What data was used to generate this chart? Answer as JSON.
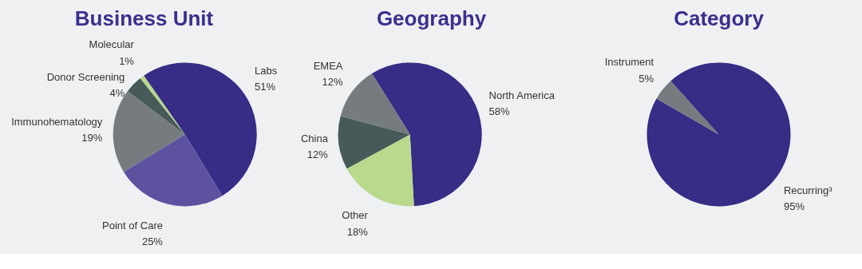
{
  "chart_data": [
    {
      "type": "pie",
      "title": "Business Unit",
      "categories": [
        "Labs",
        "Point of Care",
        "Immunohematology",
        "Donor Screening",
        "Molecular"
      ],
      "values": [
        51,
        25,
        19,
        4,
        1
      ],
      "value_labels": [
        "51%",
        "25%",
        "19%",
        "4%",
        "1%"
      ],
      "colors": [
        "#372c86",
        "#5c52a0",
        "#767b80",
        "#475a5a",
        "#b7d68a"
      ]
    },
    {
      "type": "pie",
      "title": "Geography",
      "categories": [
        "North America",
        "Other",
        "China",
        "EMEA"
      ],
      "values": [
        58,
        18,
        12,
        12
      ],
      "value_labels": [
        "58%",
        "18%",
        "12%",
        "12%"
      ],
      "colors": [
        "#372c86",
        "#b9d98d",
        "#475a5a",
        "#767b80"
      ]
    },
    {
      "type": "pie",
      "title": "Category",
      "categories": [
        "Recurring³",
        "Instrument"
      ],
      "values": [
        95,
        5
      ],
      "value_labels": [
        "95%",
        "5%"
      ],
      "colors": [
        "#372c86",
        "#767b80"
      ]
    }
  ]
}
